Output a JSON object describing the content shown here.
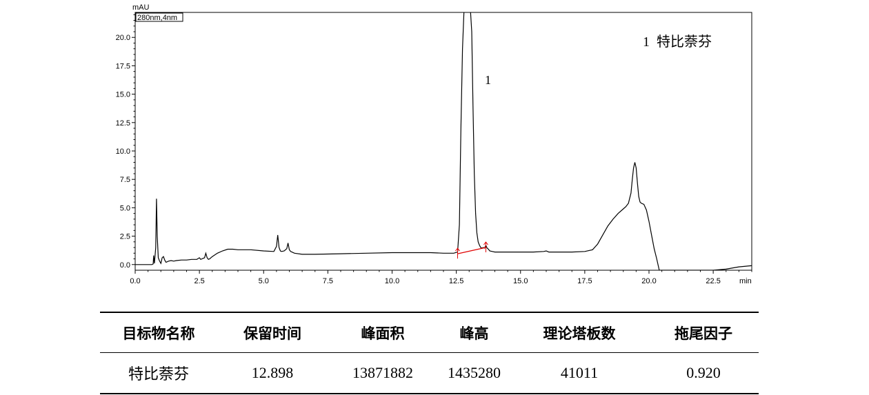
{
  "chart_data": {
    "type": "line",
    "ylabel": "mAU",
    "xlabel": "min",
    "channel": "280nm,4nm",
    "xlim": [
      0,
      24
    ],
    "ylim": [
      -0.5,
      22.2
    ],
    "xticks": [
      "0.0",
      "2.5",
      "5.0",
      "7.5",
      "10.0",
      "12.5",
      "15.0",
      "17.5",
      "20.0",
      "22.5"
    ],
    "yticks": [
      "0.0",
      "2.5",
      "5.0",
      "7.5",
      "10.0",
      "12.5",
      "15.0",
      "17.5",
      "20.0"
    ],
    "grid": false,
    "legend_text": "1  特比萘芬",
    "peak_label": "1",
    "colors": {
      "trace": "#000000",
      "baseline": "#e00000"
    },
    "baseline": {
      "start": [
        12.55,
        0.95
      ],
      "end": [
        13.65,
        1.5
      ]
    },
    "series": [
      {
        "x": [
          0.0,
          0.65,
          0.7,
          0.72,
          0.75,
          0.8,
          0.83,
          0.86,
          0.9,
          0.95,
          1.0,
          1.05,
          1.1,
          1.15,
          1.2,
          1.3,
          1.4,
          1.5,
          1.6,
          1.8,
          2.0,
          2.2,
          2.4,
          2.5,
          2.55,
          2.6,
          2.65,
          2.7,
          2.75,
          2.8,
          2.85,
          2.9,
          3.0,
          3.2,
          3.4,
          3.6,
          3.8,
          4.0,
          4.5,
          5.0,
          5.4,
          5.5,
          5.55,
          5.6,
          5.65,
          5.7,
          5.8,
          5.9,
          5.95,
          6.0,
          6.05,
          6.1,
          6.2,
          6.5,
          7.0,
          8.0,
          9.0,
          10.0,
          11.0,
          11.5,
          12.0,
          12.4,
          12.55,
          12.62,
          12.68,
          12.74,
          12.8,
          12.85,
          12.9,
          12.95,
          13.0,
          13.05,
          13.1,
          13.15,
          13.2,
          13.25,
          13.3,
          13.35,
          13.4,
          13.45,
          13.5,
          13.55,
          13.6,
          13.65,
          13.7,
          13.75,
          13.8,
          13.9,
          14.0,
          14.5,
          15.0,
          15.5,
          15.9,
          16.0,
          16.1,
          16.5,
          17.0,
          17.5,
          17.8,
          18.0,
          18.2,
          18.4,
          18.6,
          18.8,
          19.0,
          19.1,
          19.2,
          19.3,
          19.35,
          19.4,
          19.45,
          19.5,
          19.55,
          19.6,
          19.65,
          19.7,
          19.8,
          19.9,
          20.0,
          20.1,
          20.2,
          20.3,
          20.4,
          20.5,
          20.8,
          21.0,
          21.5,
          22.0,
          22.5,
          23.0,
          23.5,
          24.0
        ],
        "y": [
          0.0,
          0.0,
          0.05,
          0.8,
          0.1,
          1.5,
          5.8,
          2.5,
          0.6,
          0.3,
          0.1,
          0.6,
          0.7,
          0.4,
          0.2,
          0.3,
          0.35,
          0.3,
          0.35,
          0.4,
          0.4,
          0.45,
          0.45,
          0.6,
          0.45,
          0.5,
          0.55,
          0.6,
          1.0,
          0.6,
          0.45,
          0.5,
          0.7,
          1.0,
          1.2,
          1.35,
          1.35,
          1.3,
          1.3,
          1.2,
          1.15,
          1.6,
          2.6,
          1.5,
          1.2,
          1.15,
          1.2,
          1.4,
          1.9,
          1.3,
          1.15,
          1.1,
          1.0,
          0.9,
          0.9,
          0.95,
          1.0,
          1.05,
          1.05,
          1.05,
          1.0,
          1.0,
          1.1,
          3.5,
          12.0,
          19.0,
          22.4,
          22.4,
          22.4,
          22.4,
          22.4,
          22.4,
          20.5,
          14.0,
          8.0,
          4.5,
          2.8,
          2.0,
          1.7,
          1.5,
          1.45,
          1.5,
          1.45,
          1.7,
          1.45,
          1.35,
          1.2,
          1.15,
          1.1,
          1.1,
          1.1,
          1.1,
          1.15,
          1.2,
          1.1,
          1.1,
          1.1,
          1.15,
          1.3,
          1.8,
          2.6,
          3.4,
          4.0,
          4.5,
          4.9,
          5.1,
          5.4,
          6.3,
          7.5,
          8.5,
          9.0,
          8.5,
          7.2,
          6.0,
          5.5,
          5.4,
          5.3,
          4.8,
          3.8,
          2.6,
          1.4,
          0.5,
          -0.5,
          -0.5,
          -0.5,
          -0.5,
          -0.5,
          -0.5,
          -0.5,
          -0.4,
          -0.2,
          -0.1
        ]
      }
    ]
  },
  "table": {
    "headers": [
      "目标物名称",
      "保留时间",
      "峰面积",
      "峰高",
      "理论塔板数",
      "拖尾因子"
    ],
    "rows": [
      [
        "特比萘芬",
        "12.898",
        "13871882",
        "1435280",
        "41011",
        "0.920"
      ]
    ]
  }
}
